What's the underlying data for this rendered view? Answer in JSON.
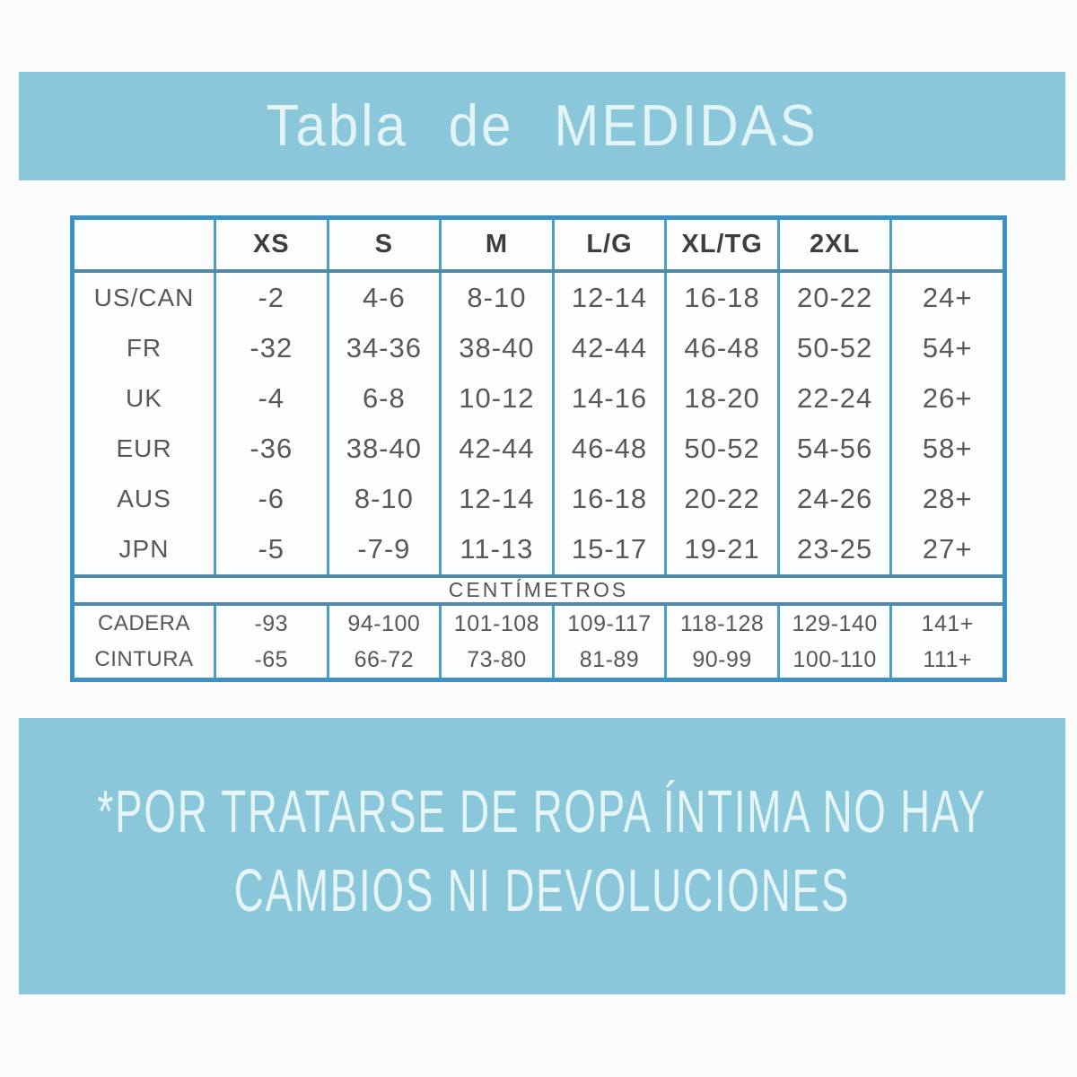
{
  "title_banner": {
    "text": "Tabla de MEDIDAS"
  },
  "size_table": {
    "header": {
      "labels": [
        "",
        "XS",
        "S",
        "M",
        "L/G",
        "XL/TG",
        "2XL",
        ""
      ]
    },
    "rows": [
      {
        "label": "US/CAN",
        "values": [
          "-2",
          "4-6",
          "8-10",
          "12-14",
          "16-18",
          "20-22",
          "24+"
        ]
      },
      {
        "label": "FR",
        "values": [
          "-32",
          "34-36",
          "38-40",
          "42-44",
          "46-48",
          "50-52",
          "54+"
        ]
      },
      {
        "label": "UK",
        "values": [
          "-4",
          "6-8",
          "10-12",
          "14-16",
          "18-20",
          "22-24",
          "26+"
        ]
      },
      {
        "label": "EUR",
        "values": [
          "-36",
          "38-40",
          "42-44",
          "46-48",
          "50-52",
          "54-56",
          "58+"
        ]
      },
      {
        "label": "AUS",
        "values": [
          "-6",
          "8-10",
          "12-14",
          "16-18",
          "20-22",
          "24-26",
          "28+"
        ]
      },
      {
        "label": "JPN",
        "values": [
          "-5",
          "-7-9",
          "11-13",
          "15-17",
          "19-21",
          "23-25",
          "27+"
        ]
      }
    ],
    "cm_band_label": "CENTÍMETROS",
    "cm_rows": [
      {
        "label": "CADERA",
        "values": [
          "-93",
          "94-100",
          "101-108",
          "109-117",
          "118-128",
          "129-140",
          "141+"
        ]
      },
      {
        "label": "CINTURA",
        "values": [
          "-65",
          "66-72",
          "73-80",
          "81-89",
          "90-99",
          "100-110",
          "111+"
        ]
      }
    ]
  },
  "footer_banner": {
    "line1": "*POR TRATARSE DE ROPA ÍNTIMA NO HAY",
    "line2": "CAMBIOS NI DEVOLUCIONES"
  },
  "colors": {
    "banner_background": "#8bc7da",
    "banner_text": "#e2f4f6",
    "table_border": "#3c92c3",
    "grid_vertical_line": "#4d9ec7",
    "grid_section_line": "#4f89a5",
    "cell_background": "#fbfdfe",
    "cell_text": "#585858",
    "header_text": "#3e3e3e",
    "page_background": "#fcfcfd"
  }
}
